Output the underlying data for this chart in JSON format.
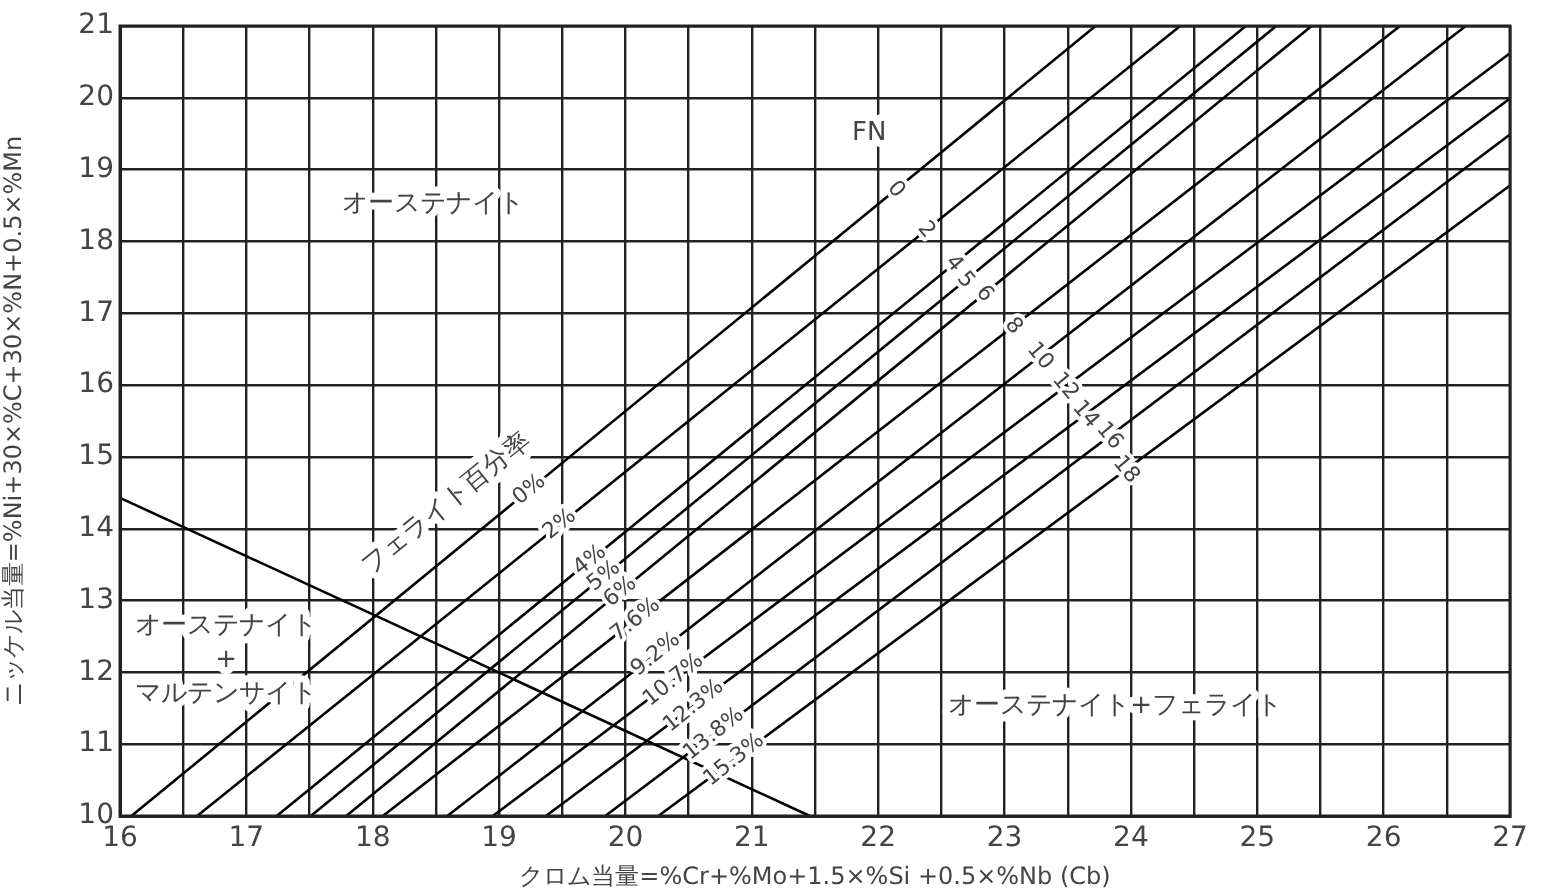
{
  "chart_data": {
    "type": "line",
    "xlabel": "クロム当量=%Cr+%Mo+1.5×%Si +0.5×%Nb (Cb)",
    "ylabel": "ニッケル当量=%Ni+30×%C+30×%N+0.5×%Mn",
    "xlim": [
      16,
      27
    ],
    "ylim": [
      10,
      21
    ],
    "xticks": [
      16,
      {
        "value": 16.5,
        "label": null
      },
      17,
      {
        "value": 17.5,
        "label": null
      },
      18,
      {
        "value": 18.5,
        "label": null
      },
      19,
      {
        "value": 19.5,
        "label": null
      },
      20,
      {
        "value": 20.5,
        "label": null
      },
      21,
      {
        "value": 21.5,
        "label": null
      },
      22,
      {
        "value": 22.5,
        "label": null
      },
      23,
      {
        "value": 23.5,
        "label": null
      },
      24,
      {
        "value": 24.5,
        "label": null
      },
      25,
      {
        "value": 25.5,
        "label": null
      },
      26,
      {
        "value": 26.5,
        "label": null
      },
      27
    ],
    "yticks": [
      10,
      11,
      12,
      13,
      14,
      15,
      16,
      17,
      18,
      19,
      20,
      21
    ],
    "grid": true,
    "legend": false,
    "marker": "none",
    "line_style": "solid",
    "series": [
      {
        "color": "#000000",
        "x": [
          16.09,
          23.72
        ],
        "values": [
          10,
          21
        ]
      },
      {
        "color": "#000000",
        "x": [
          16.61,
          24.39
        ],
        "values": [
          10,
          21
        ]
      },
      {
        "color": "#000000",
        "x": [
          17.24,
          24.91
        ],
        "values": [
          10,
          21
        ]
      },
      {
        "color": "#000000",
        "x": [
          17.51,
          25.15
        ],
        "values": [
          10,
          21
        ]
      },
      {
        "color": "#000000",
        "x": [
          17.79,
          25.43
        ],
        "values": [
          10,
          21
        ]
      },
      {
        "color": "#000000",
        "x": [
          18.08,
          26.13
        ],
        "values": [
          10,
          21
        ]
      },
      {
        "color": "#000000",
        "x": [
          18.59,
          26.65
        ],
        "values": [
          10,
          21
        ]
      },
      {
        "color": "#000000",
        "x": [
          18.95,
          27
        ],
        "values": [
          10,
          20.62
        ]
      },
      {
        "color": "#000000",
        "x": [
          19.37,
          27
        ],
        "values": [
          10,
          19.99
        ]
      },
      {
        "color": "#000000",
        "x": [
          19.84,
          27
        ],
        "values": [
          10,
          19.49
        ]
      },
      {
        "color": "#000000",
        "x": [
          20.26,
          27
        ],
        "values": [
          10,
          18.78
        ]
      },
      {
        "color": "#000000",
        "x": [
          16,
          21.46
        ],
        "values": [
          14.43,
          10
        ]
      }
    ],
    "annotations": [
      "オーステナイト",
      "オーステナイト\n+\nマルテンサイト",
      "オーステナイト+フェライト",
      "FN",
      {
        "text": "0",
        "x": 22.14,
        "y": 18.72
      },
      {
        "text": "2",
        "x": 22.38,
        "y": 18.16
      },
      {
        "text": "4",
        "x": 22.6,
        "y": 17.69
      },
      {
        "text": "5",
        "x": 22.69,
        "y": 17.46
      },
      {
        "text": "6",
        "x": 22.84,
        "y": 17.27
      },
      {
        "text": "8",
        "x": 23.07,
        "y": 16.82
      },
      {
        "text": "10",
        "x": 23.28,
        "y": 16.4
      },
      {
        "text": "12",
        "x": 23.48,
        "y": 15.98
      },
      {
        "text": "14",
        "x": 23.64,
        "y": 15.59
      },
      {
        "text": "16",
        "x": 23.83,
        "y": 15.29
      },
      {
        "text": "18",
        "x": 23.96,
        "y": 14.82
      },
      "フェライト百分率",
      {
        "text": "0%",
        "x": 19.24,
        "y": 14.54
      },
      {
        "text": "2%",
        "x": 19.48,
        "y": 14.06
      },
      {
        "text": "4%",
        "x": 19.72,
        "y": 13.56
      },
      {
        "text": "5%",
        "x": 19.83,
        "y": 13.34
      },
      {
        "text": "6%",
        "x": 19.96,
        "y": 13.12
      },
      {
        "text": "7.6%",
        "x": 20.08,
        "y": 12.73
      },
      {
        "text": "9.2%",
        "x": 20.24,
        "y": 12.25
      },
      {
        "text": "10.7%",
        "x": 20.38,
        "y": 11.89
      },
      {
        "text": "12.3%",
        "x": 20.54,
        "y": 11.53
      },
      {
        "text": "13.8%",
        "x": 20.7,
        "y": 11.14
      },
      {
        "text": "15.3%",
        "x": 20.86,
        "y": 10.78
      }
    ]
  }
}
